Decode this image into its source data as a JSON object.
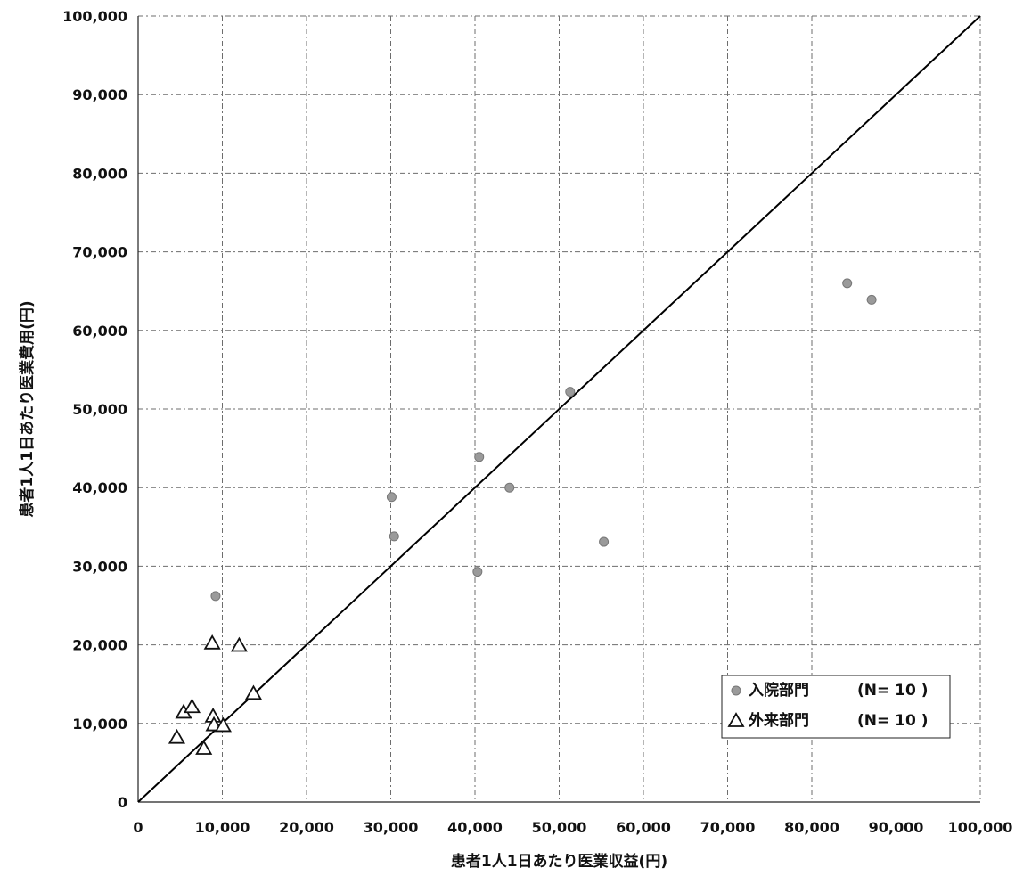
{
  "chart_data": {
    "type": "scatter",
    "title": "",
    "xlabel": "患者1人1日あたり医業収益(円)",
    "ylabel": "患者1人1日あたり医業費用(円)",
    "xlim": [
      0,
      100000
    ],
    "ylim": [
      0,
      100000
    ],
    "x_ticks": [
      0,
      10000,
      20000,
      30000,
      40000,
      50000,
      60000,
      70000,
      80000,
      90000,
      100000
    ],
    "y_ticks": [
      0,
      10000,
      20000,
      30000,
      40000,
      50000,
      60000,
      70000,
      80000,
      90000,
      100000
    ],
    "x_tick_labels": [
      "0",
      "10,000",
      "20,000",
      "30,000",
      "40,000",
      "50,000",
      "60,000",
      "70,000",
      "80,000",
      "90,000",
      "100,000"
    ],
    "y_tick_labels": [
      "0",
      "10,000",
      "20,000",
      "30,000",
      "40,000",
      "50,000",
      "60,000",
      "70,000",
      "80,000",
      "90,000",
      "100,000"
    ],
    "grid": true,
    "legend_position": "bottom-right",
    "reference_line": {
      "from": [
        0,
        0
      ],
      "to": [
        100000,
        100000
      ]
    },
    "series": [
      {
        "name": "入院部門",
        "legend_label": "入院部門",
        "legend_n": "(N=  10 )",
        "marker": "circle",
        "color": "#9a9a9a",
        "points": [
          {
            "x": 9200,
            "y": 26200
          },
          {
            "x": 30100,
            "y": 38800
          },
          {
            "x": 30400,
            "y": 33800
          },
          {
            "x": 40300,
            "y": 29300
          },
          {
            "x": 40500,
            "y": 43900
          },
          {
            "x": 44100,
            "y": 40000
          },
          {
            "x": 51300,
            "y": 52200
          },
          {
            "x": 55300,
            "y": 33100
          },
          {
            "x": 84200,
            "y": 66000
          },
          {
            "x": 87100,
            "y": 63900
          }
        ]
      },
      {
        "name": "外来部門",
        "legend_label": "外来部門",
        "legend_n": "(N=  10 )",
        "marker": "triangle",
        "color": "#111111",
        "points": [
          {
            "x": 4600,
            "y": 8200
          },
          {
            "x": 5400,
            "y": 11400
          },
          {
            "x": 6400,
            "y": 12100
          },
          {
            "x": 7800,
            "y": 6800
          },
          {
            "x": 8800,
            "y": 20200
          },
          {
            "x": 8900,
            "y": 10900
          },
          {
            "x": 9000,
            "y": 9800
          },
          {
            "x": 10100,
            "y": 9700
          },
          {
            "x": 12000,
            "y": 19900
          },
          {
            "x": 13700,
            "y": 13800
          }
        ]
      }
    ]
  }
}
